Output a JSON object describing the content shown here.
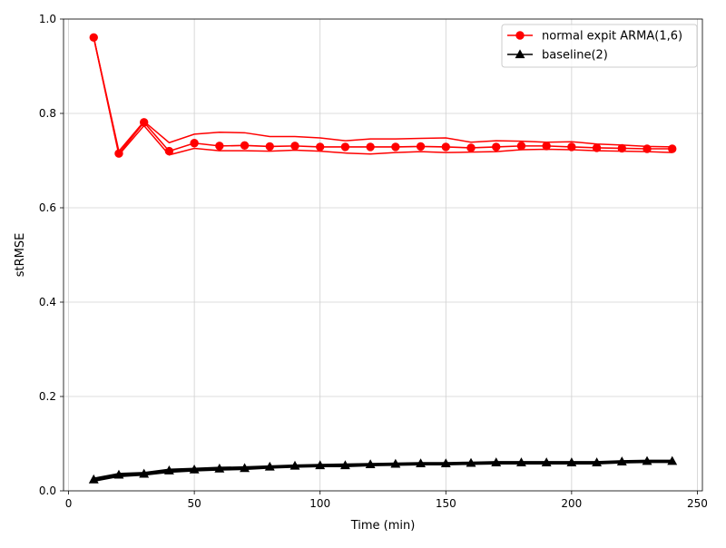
{
  "chart_data": {
    "type": "line",
    "title": "",
    "xlabel": "Time (min)",
    "ylabel": "stRMSE",
    "xlim": [
      -2,
      252
    ],
    "ylim": [
      0.0,
      1.0
    ],
    "x_ticks": [
      0,
      50,
      100,
      150,
      200,
      250
    ],
    "x_tick_labels": [
      "0",
      "50",
      "100",
      "150",
      "200",
      "250"
    ],
    "y_ticks": [
      0.0,
      0.2,
      0.4,
      0.6,
      0.8,
      1.0
    ],
    "y_tick_labels": [
      "0.0",
      "0.2",
      "0.4",
      "0.6",
      "0.8",
      "1.0"
    ],
    "grid": true,
    "legend_position": "top-right",
    "x": [
      10,
      20,
      30,
      40,
      50,
      60,
      70,
      80,
      90,
      100,
      110,
      120,
      130,
      140,
      150,
      160,
      170,
      180,
      190,
      200,
      210,
      220,
      230,
      240
    ],
    "series": [
      {
        "name": "normal expit ARMA(1,6)",
        "color": "#ff0000",
        "marker": "circle",
        "values": [
          0.961,
          0.715,
          0.781,
          0.72,
          0.737,
          0.731,
          0.732,
          0.73,
          0.731,
          0.729,
          0.729,
          0.729,
          0.729,
          0.73,
          0.729,
          0.727,
          0.729,
          0.731,
          0.731,
          0.729,
          0.727,
          0.726,
          0.725,
          0.725
        ],
        "upper": [
          0.961,
          0.72,
          0.783,
          0.738,
          0.756,
          0.76,
          0.759,
          0.751,
          0.751,
          0.748,
          0.742,
          0.746,
          0.746,
          0.747,
          0.748,
          0.739,
          0.742,
          0.741,
          0.739,
          0.74,
          0.735,
          0.733,
          0.73,
          0.729
        ],
        "lower": [
          0.961,
          0.712,
          0.774,
          0.712,
          0.726,
          0.721,
          0.721,
          0.72,
          0.722,
          0.72,
          0.716,
          0.714,
          0.717,
          0.719,
          0.717,
          0.718,
          0.719,
          0.723,
          0.724,
          0.723,
          0.721,
          0.72,
          0.719,
          0.717
        ]
      },
      {
        "name": "baseline(2)",
        "color": "#000000",
        "marker": "triangle",
        "values": [
          0.024,
          0.034,
          0.036,
          0.043,
          0.045,
          0.047,
          0.048,
          0.051,
          0.053,
          0.054,
          0.054,
          0.056,
          0.057,
          0.058,
          0.058,
          0.059,
          0.06,
          0.06,
          0.06,
          0.06,
          0.06,
          0.062,
          0.063,
          0.063
        ],
        "upper": [
          0.026,
          0.036,
          0.038,
          0.045,
          0.047,
          0.049,
          0.05,
          0.052,
          0.054,
          0.055,
          0.056,
          0.057,
          0.058,
          0.059,
          0.059,
          0.06,
          0.061,
          0.061,
          0.061,
          0.061,
          0.061,
          0.063,
          0.064,
          0.064
        ],
        "lower": [
          0.021,
          0.031,
          0.034,
          0.04,
          0.043,
          0.045,
          0.046,
          0.049,
          0.051,
          0.052,
          0.052,
          0.054,
          0.055,
          0.056,
          0.056,
          0.057,
          0.058,
          0.058,
          0.058,
          0.058,
          0.058,
          0.06,
          0.061,
          0.061
        ]
      }
    ]
  }
}
